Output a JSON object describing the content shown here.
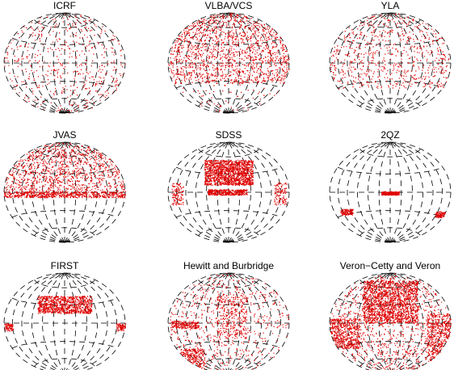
{
  "panels": [
    {
      "title": "ICRF"
    },
    {
      "title": "VLBA/VCS"
    },
    {
      "title": "YLA"
    },
    {
      "title": "JVAS"
    },
    {
      "title": "SDSS"
    },
    {
      "title": "2QZ"
    },
    {
      "title": "FIRST"
    },
    {
      "title": "Hewitt and Burbridge"
    },
    {
      "title": "Veron−Cetty and Veron"
    }
  ]
}
